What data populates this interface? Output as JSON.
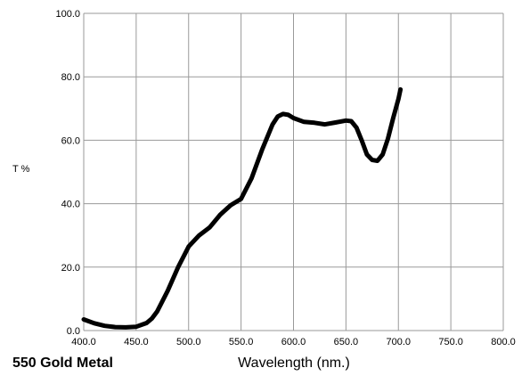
{
  "chart_data": {
    "type": "line",
    "title": "550 Gold Metal",
    "xlabel": "Wavelength (nm.)",
    "ylabel": "T %",
    "xlim": [
      400,
      800
    ],
    "ylim": [
      0,
      100
    ],
    "x_ticks": [
      "400.0",
      "450.0",
      "500.0",
      "550.0",
      "600.0",
      "650.0",
      "700.0",
      "750.0",
      "800.0"
    ],
    "y_ticks": [
      "0.0",
      "20.0",
      "40.0",
      "60.0",
      "80.0",
      "100.0"
    ],
    "grid": true,
    "series": [
      {
        "color": "#000000",
        "x": [
          400,
          410,
          420,
          430,
          440,
          450,
          460,
          465,
          470,
          480,
          490,
          500,
          510,
          520,
          530,
          540,
          550,
          560,
          570,
          580,
          585,
          590,
          595,
          600,
          610,
          620,
          630,
          640,
          650,
          655,
          660,
          665,
          670,
          675,
          680,
          685,
          690,
          695,
          700,
          702
        ],
        "y": [
          3.5,
          2.3,
          1.5,
          1.1,
          1.0,
          1.2,
          2.4,
          3.8,
          6.0,
          12.5,
          20.0,
          26.5,
          30.0,
          32.5,
          36.5,
          39.5,
          41.5,
          48.0,
          57.0,
          65.0,
          67.5,
          68.3,
          68.0,
          67.0,
          65.8,
          65.5,
          65.0,
          65.6,
          66.2,
          66.0,
          64.0,
          60.0,
          55.5,
          53.8,
          53.5,
          55.5,
          60.5,
          67.0,
          73.0,
          76.0
        ]
      }
    ]
  }
}
